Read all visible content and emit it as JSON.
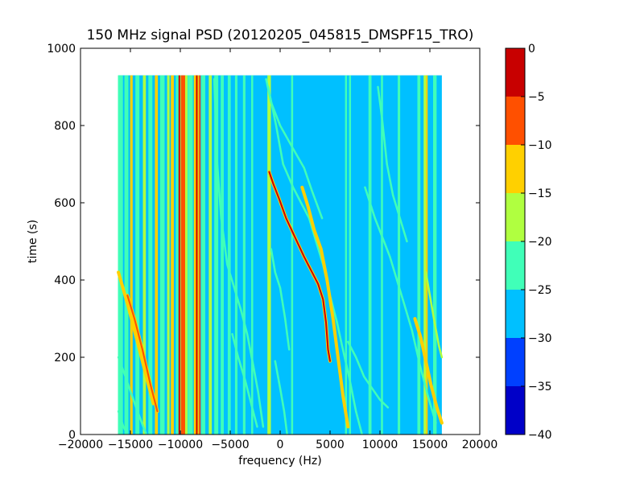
{
  "chart_data": {
    "type": "heatmap",
    "title": "150 MHz signal PSD (20120205_045815_DMSPF15_TRO)",
    "xlabel": "frequency (Hz)",
    "ylabel": "time (s)",
    "xlim": [
      -20000,
      20000
    ],
    "ylim": [
      0,
      1000
    ],
    "x_ticks": [
      -20000,
      -15000,
      -10000,
      -5000,
      0,
      5000,
      10000,
      15000,
      20000
    ],
    "y_ticks": [
      0,
      200,
      400,
      600,
      800,
      1000
    ],
    "data_extent": {
      "x": [
        -16200,
        16200
      ],
      "y": [
        0,
        930
      ]
    },
    "colorbar": {
      "range": [
        -40,
        0
      ],
      "ticks": [
        0,
        -5,
        -10,
        -15,
        -20,
        -25,
        -30,
        -35,
        -40
      ],
      "levels": [
        {
          "from": -40,
          "to": -35,
          "color": "#0000c8"
        },
        {
          "from": -35,
          "to": -30,
          "color": "#0040ff"
        },
        {
          "from": -30,
          "to": -25,
          "color": "#00c0ff"
        },
        {
          "from": -25,
          "to": -20,
          "color": "#40ffb8"
        },
        {
          "from": -20,
          "to": -15,
          "color": "#b0ff40"
        },
        {
          "from": -15,
          "to": -10,
          "color": "#ffd000"
        },
        {
          "from": -10,
          "to": -5,
          "color": "#ff5000"
        },
        {
          "from": -5,
          "to": 0,
          "color": "#c80000"
        }
      ]
    },
    "background_level": -27.5,
    "vertical_bands": [
      {
        "x": -16000,
        "width": 500,
        "level": -22.5
      },
      {
        "x": -15400,
        "width": 400,
        "level": -22.5
      },
      {
        "x": -14900,
        "width": 250,
        "level": -12.5
      },
      {
        "x": -14300,
        "width": 400,
        "level": -22.5
      },
      {
        "x": -13600,
        "width": 300,
        "level": -17.5
      },
      {
        "x": -13000,
        "width": 400,
        "level": -22.5
      },
      {
        "x": -12400,
        "width": 300,
        "level": -12.5
      },
      {
        "x": -11800,
        "width": 450,
        "level": -22.5
      },
      {
        "x": -11200,
        "width": 250,
        "level": -17.5
      },
      {
        "x": -10800,
        "width": 300,
        "level": -12.5
      },
      {
        "x": -10300,
        "width": 300,
        "level": -22.5
      },
      {
        "x": -10050,
        "width": 200,
        "level": -12.5
      },
      {
        "x": -9800,
        "width": 250,
        "level": -7.5
      },
      {
        "x": -9450,
        "width": 350,
        "level": -17.5
      },
      {
        "x": -9000,
        "width": 500,
        "level": -22.5
      },
      {
        "x": -8400,
        "width": 500,
        "level": -12.5
      },
      {
        "x": -7700,
        "width": 400,
        "level": -22.5
      },
      {
        "x": -7000,
        "width": 300,
        "level": -17.5
      },
      {
        "x": -6400,
        "width": 400,
        "level": -22.5
      },
      {
        "x": -5800,
        "width": 300,
        "level": -22.5
      },
      {
        "x": -5100,
        "width": 300,
        "level": -22.5
      },
      {
        "x": -4400,
        "width": 250,
        "level": -22.5
      },
      {
        "x": -3600,
        "width": 250,
        "level": -22.5
      },
      {
        "x": -2800,
        "width": 200,
        "level": -22.5
      },
      {
        "x": -1100,
        "width": 350,
        "level": -17.5
      },
      {
        "x": 1200,
        "width": 200,
        "level": -22.5
      },
      {
        "x": 6600,
        "width": 200,
        "level": -22.5
      },
      {
        "x": 7000,
        "width": 200,
        "level": -22.5
      },
      {
        "x": 9000,
        "width": 300,
        "level": -22.5
      },
      {
        "x": 10200,
        "width": 200,
        "level": -22.5
      },
      {
        "x": 11900,
        "width": 250,
        "level": -22.5
      },
      {
        "x": 13900,
        "width": 300,
        "level": -22.5
      },
      {
        "x": 14500,
        "width": 250,
        "level": -17.5
      },
      {
        "x": 15500,
        "width": 350,
        "level": -22.5
      }
    ],
    "vertical_lines": [
      {
        "x": -10100,
        "level": -2.5
      },
      {
        "x": -9600,
        "level": -7.5
      },
      {
        "x": -8350,
        "level": -2.5
      },
      {
        "x": -8050,
        "level": -7.5
      },
      {
        "x": 14700,
        "level": -12.5
      }
    ],
    "traces": [
      {
        "level": -22.5,
        "points": [
          [
            -1400,
            920
          ],
          [
            -900,
            860
          ],
          [
            0,
            800
          ],
          [
            1300,
            740
          ],
          [
            2400,
            690
          ],
          [
            3200,
            630
          ],
          [
            4200,
            560
          ]
        ]
      },
      {
        "level": -22.5,
        "points": [
          [
            -1200,
            900
          ],
          [
            -400,
            800
          ],
          [
            300,
            700
          ],
          [
            1300,
            640
          ],
          [
            2100,
            600
          ],
          [
            2900,
            560
          ],
          [
            3600,
            500
          ],
          [
            4300,
            440
          ],
          [
            5000,
            360
          ],
          [
            5700,
            290
          ],
          [
            6200,
            230
          ],
          [
            6900,
            150
          ],
          [
            7600,
            60
          ],
          [
            8200,
            0
          ]
        ]
      },
      {
        "level": -2.5,
        "points": [
          [
            -1100,
            680
          ],
          [
            -700,
            650
          ],
          [
            -100,
            610
          ],
          [
            600,
            560
          ],
          [
            1500,
            510
          ],
          [
            2400,
            460
          ],
          [
            3200,
            420
          ],
          [
            3800,
            390
          ],
          [
            4300,
            350
          ],
          [
            4600,
            290
          ],
          [
            4800,
            220
          ],
          [
            5000,
            190
          ]
        ]
      },
      {
        "level": -12.5,
        "points": [
          [
            2200,
            640
          ],
          [
            2800,
            590
          ],
          [
            3400,
            530
          ],
          [
            4100,
            480
          ],
          [
            4700,
            400
          ],
          [
            5300,
            300
          ],
          [
            5800,
            200
          ],
          [
            6300,
            100
          ],
          [
            6800,
            20
          ]
        ]
      },
      {
        "level": -22.5,
        "points": [
          [
            -16200,
            200
          ],
          [
            -15500,
            150
          ],
          [
            -14700,
            90
          ],
          [
            -14000,
            40
          ],
          [
            -13400,
            0
          ]
        ]
      },
      {
        "level": -12.5,
        "points": [
          [
            -16200,
            420
          ],
          [
            -15200,
            330
          ],
          [
            -14300,
            240
          ],
          [
            -13500,
            160
          ],
          [
            -12700,
            80
          ]
        ]
      },
      {
        "level": -7.5,
        "points": [
          [
            -15300,
            360
          ],
          [
            -14600,
            300
          ],
          [
            -13800,
            220
          ],
          [
            -13000,
            130
          ],
          [
            -12300,
            60
          ]
        ]
      },
      {
        "level": -22.5,
        "points": [
          [
            -16200,
            60
          ],
          [
            -15700,
            20
          ],
          [
            -15300,
            0
          ]
        ]
      },
      {
        "level": -22.5,
        "points": [
          [
            -6600,
            920
          ],
          [
            -6300,
            700
          ],
          [
            -5900,
            560
          ],
          [
            -5300,
            440
          ],
          [
            -4600,
            380
          ],
          [
            -3900,
            320
          ],
          [
            -3300,
            260
          ],
          [
            -2700,
            180
          ],
          [
            -2200,
            110
          ],
          [
            -1700,
            20
          ]
        ]
      },
      {
        "level": -22.5,
        "points": [
          [
            -4800,
            260
          ],
          [
            -4200,
            200
          ],
          [
            -3500,
            140
          ],
          [
            -2900,
            80
          ],
          [
            -2300,
            20
          ]
        ]
      },
      {
        "level": -22.5,
        "points": [
          [
            -500,
            190
          ],
          [
            0,
            120
          ],
          [
            400,
            60
          ],
          [
            700,
            0
          ]
        ]
      },
      {
        "level": -22.5,
        "points": [
          [
            -900,
            480
          ],
          [
            -500,
            420
          ],
          [
            0,
            380
          ],
          [
            500,
            300
          ],
          [
            900,
            220
          ]
        ]
      },
      {
        "level": -22.5,
        "points": [
          [
            8500,
            640
          ],
          [
            9500,
            560
          ],
          [
            10400,
            500
          ],
          [
            11000,
            460
          ],
          [
            11700,
            400
          ],
          [
            12400,
            340
          ],
          [
            13200,
            270
          ],
          [
            14000,
            180
          ],
          [
            14800,
            100
          ],
          [
            15600,
            30
          ]
        ]
      },
      {
        "level": -22.5,
        "points": [
          [
            9800,
            900
          ],
          [
            10200,
            820
          ],
          [
            10700,
            700
          ],
          [
            11300,
            620
          ],
          [
            12000,
            560
          ],
          [
            12700,
            500
          ]
        ]
      },
      {
        "level": -22.5,
        "points": [
          [
            6800,
            240
          ],
          [
            7600,
            200
          ],
          [
            8400,
            150
          ],
          [
            9200,
            120
          ],
          [
            10000,
            90
          ],
          [
            10800,
            70
          ]
        ]
      },
      {
        "level": -12.5,
        "points": [
          [
            13500,
            300
          ],
          [
            14100,
            250
          ],
          [
            14600,
            190
          ],
          [
            15100,
            130
          ],
          [
            15700,
            70
          ],
          [
            16200,
            30
          ]
        ]
      },
      {
        "level": -17.5,
        "points": [
          [
            14600,
            420
          ],
          [
            15000,
            360
          ],
          [
            15400,
            300
          ],
          [
            15900,
            230
          ],
          [
            16200,
            200
          ]
        ]
      }
    ]
  }
}
